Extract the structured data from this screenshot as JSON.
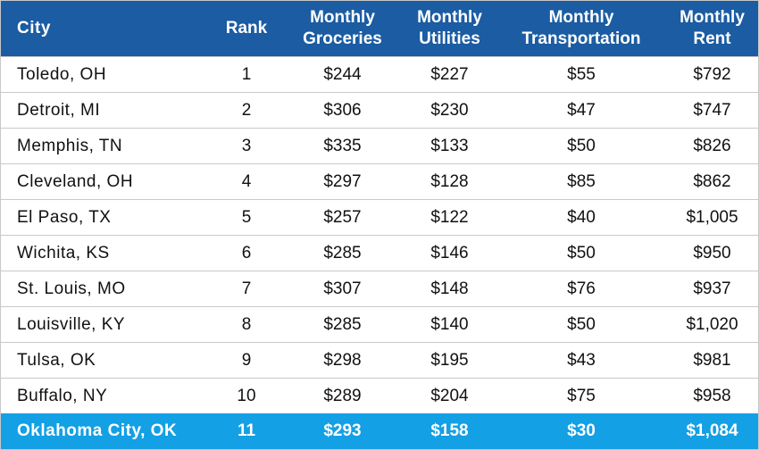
{
  "table": {
    "header": [
      "City",
      "Rank",
      "Monthly\nGroceries",
      "Monthly\nUtilities",
      "Monthly\nTransportation",
      "Monthly\nRent"
    ],
    "rows": [
      [
        "Toledo, OH",
        "1",
        "$244",
        "$227",
        "$55",
        "$792"
      ],
      [
        "Detroit, MI",
        "2",
        "$306",
        "$230",
        "$47",
        "$747"
      ],
      [
        "Memphis, TN",
        "3",
        "$335",
        "$133",
        "$50",
        "$826"
      ],
      [
        "Cleveland, OH",
        "4",
        "$297",
        "$128",
        "$85",
        "$862"
      ],
      [
        "El Paso, TX",
        "5",
        "$257",
        "$122",
        "$40",
        "$1,005"
      ],
      [
        "Wichita, KS",
        "6",
        "$285",
        "$146",
        "$50",
        "$950"
      ],
      [
        "St. Louis, MO",
        "7",
        "$307",
        "$148",
        "$76",
        "$937"
      ],
      [
        "Louisville, KY",
        "8",
        "$285",
        "$140",
        "$50",
        "$1,020"
      ],
      [
        "Tulsa, OK",
        "9",
        "$298",
        "$195",
        "$43",
        "$981"
      ],
      [
        "Buffalo, NY",
        "10",
        "$289",
        "$204",
        "$75",
        "$958"
      ],
      [
        "Oklahoma City, OK",
        "11",
        "$293",
        "$158",
        "$30",
        "$1,084"
      ]
    ]
  }
}
